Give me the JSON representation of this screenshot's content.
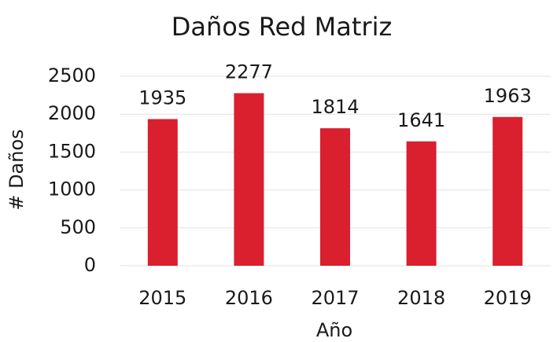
{
  "chart_data": {
    "type": "bar",
    "title": "Daños Red Matriz",
    "x_label": "Año",
    "y_label": "# Daños",
    "categories": [
      "2015",
      "2016",
      "2017",
      "2018",
      "2019"
    ],
    "values": [
      1935,
      2277,
      1814,
      1641,
      1963
    ],
    "color": "#da1f2e",
    "ylim": [
      0,
      2500
    ],
    "yticks": [
      0,
      500,
      1000,
      1500,
      2000,
      2500
    ],
    "grid": true
  }
}
